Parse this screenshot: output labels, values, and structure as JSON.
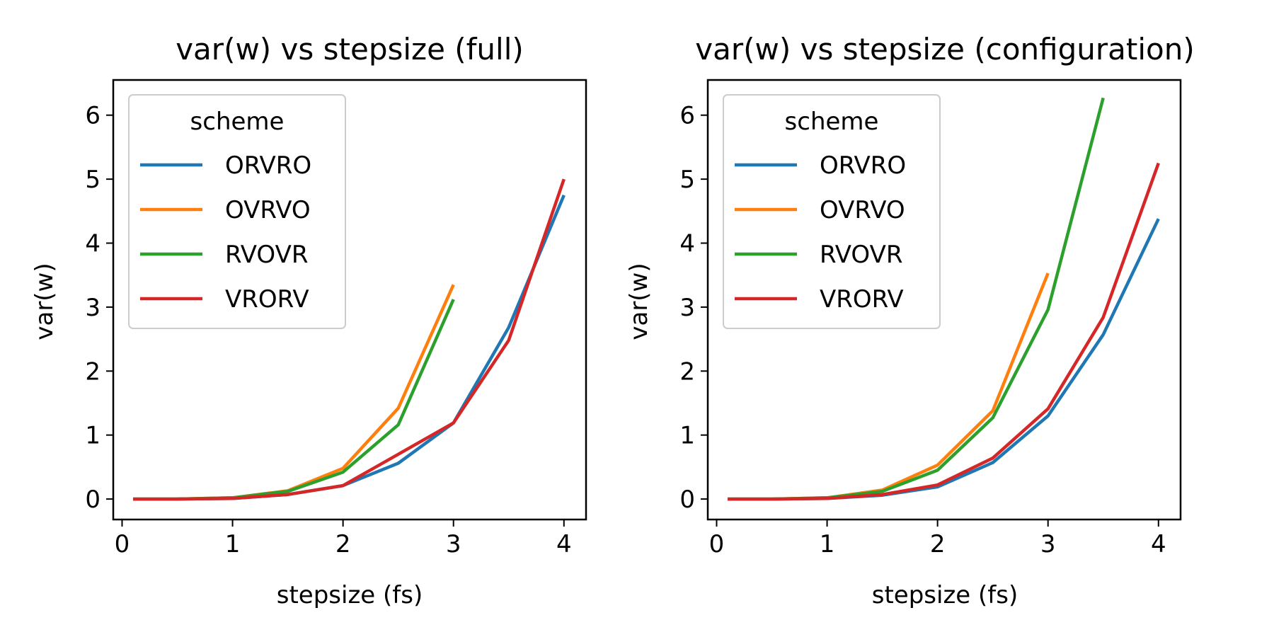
{
  "chart_data": [
    {
      "type": "line",
      "title": "var(w) vs stepsize (full)",
      "xlabel": "stepsize (fs)",
      "ylabel": "var(w)",
      "xlim": [
        -0.08,
        4.2
      ],
      "ylim": [
        -0.32,
        6.55
      ],
      "xticks": [
        0,
        1,
        2,
        3,
        4
      ],
      "yticks": [
        0,
        1,
        2,
        3,
        4,
        5,
        6
      ],
      "grid": false,
      "legend": {
        "title": "scheme",
        "placement": "top-left"
      },
      "series": [
        {
          "name": "ORVRO",
          "color": "#1f77b4",
          "x": [
            0.1,
            0.5,
            1.0,
            1.5,
            2.0,
            2.5,
            3.0,
            3.5,
            4.0
          ],
          "y": [
            0.0,
            0.0,
            0.01,
            0.07,
            0.21,
            0.56,
            1.19,
            2.68,
            4.75
          ]
        },
        {
          "name": "OVRVO",
          "color": "#ff7f0e",
          "x": [
            0.1,
            0.5,
            1.0,
            1.5,
            2.0,
            2.5,
            3.0
          ],
          "y": [
            0.0,
            0.0,
            0.02,
            0.13,
            0.48,
            1.42,
            3.35
          ]
        },
        {
          "name": "RVOVR",
          "color": "#2ca02c",
          "x": [
            0.1,
            0.5,
            1.0,
            1.5,
            2.0,
            2.5,
            3.0
          ],
          "y": [
            0.0,
            0.0,
            0.02,
            0.12,
            0.42,
            1.16,
            3.12
          ]
        },
        {
          "name": "VRORV",
          "color": "#d62728",
          "x": [
            0.1,
            0.5,
            1.0,
            1.5,
            2.0,
            2.5,
            3.0,
            3.5,
            4.0
          ],
          "y": [
            0.0,
            0.0,
            0.01,
            0.07,
            0.21,
            0.7,
            1.19,
            2.48,
            5.0
          ]
        }
      ]
    },
    {
      "type": "line",
      "title": "var(w) vs stepsize (configuration)",
      "xlabel": "stepsize (fs)",
      "ylabel": "var(w)",
      "xlim": [
        -0.08,
        4.2
      ],
      "ylim": [
        -0.32,
        6.55
      ],
      "xticks": [
        0,
        1,
        2,
        3,
        4
      ],
      "yticks": [
        0,
        1,
        2,
        3,
        4,
        5,
        6
      ],
      "grid": false,
      "legend": {
        "title": "scheme",
        "placement": "top-left"
      },
      "series": [
        {
          "name": "ORVRO",
          "color": "#1f77b4",
          "x": [
            0.1,
            0.5,
            1.0,
            1.5,
            2.0,
            2.5,
            3.0,
            3.5,
            4.0
          ],
          "y": [
            0.0,
            0.0,
            0.01,
            0.06,
            0.19,
            0.57,
            1.3,
            2.57,
            4.38
          ]
        },
        {
          "name": "OVRVO",
          "color": "#ff7f0e",
          "x": [
            0.1,
            0.5,
            1.0,
            1.5,
            2.0,
            2.5,
            3.0
          ],
          "y": [
            0.0,
            0.0,
            0.02,
            0.14,
            0.53,
            1.38,
            3.53
          ]
        },
        {
          "name": "RVOVR",
          "color": "#2ca02c",
          "x": [
            0.1,
            0.5,
            1.0,
            1.5,
            2.0,
            2.5,
            3.0,
            3.5
          ],
          "y": [
            0.0,
            0.0,
            0.02,
            0.12,
            0.45,
            1.27,
            2.96,
            6.27
          ]
        },
        {
          "name": "VRORV",
          "color": "#d62728",
          "x": [
            0.1,
            0.5,
            1.0,
            1.5,
            2.0,
            2.5,
            3.0,
            3.5,
            4.0
          ],
          "y": [
            0.0,
            0.0,
            0.01,
            0.07,
            0.22,
            0.64,
            1.41,
            2.84,
            5.25
          ]
        }
      ]
    }
  ]
}
